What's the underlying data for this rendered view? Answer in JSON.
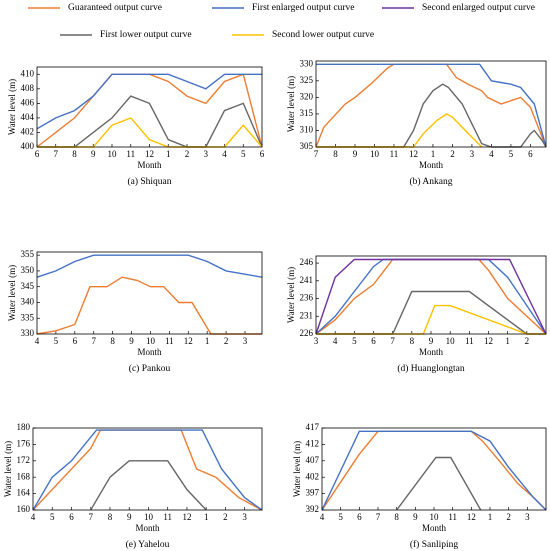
{
  "legend": {
    "entries": [
      {
        "name": "Guaranteed output curve",
        "color": "#ed7d31"
      },
      {
        "name": "First enlarged output curve",
        "color": "#4472c4"
      },
      {
        "name": "Second enlarged output curve",
        "color": "#7030a0"
      },
      {
        "name": "First lower output curve",
        "color": "#666666"
      },
      {
        "name": "Second lower output curve",
        "color": "#ffc000"
      }
    ]
  },
  "chart_data": [
    {
      "type": "line",
      "caption": "(a) Shiquan",
      "xlabel": "Month",
      "ylabel": "Water level (m)",
      "xlim": [
        0,
        12
      ],
      "ylim": [
        400,
        411
      ],
      "xticks": [
        {
          "value": 0,
          "label": "6"
        },
        {
          "value": 1,
          "label": "7"
        },
        {
          "value": 2,
          "label": "8"
        },
        {
          "value": 3,
          "label": "9"
        },
        {
          "value": 4,
          "label": "10"
        },
        {
          "value": 5,
          "label": "11"
        },
        {
          "value": 6,
          "label": "12"
        },
        {
          "value": 7,
          "label": "1"
        },
        {
          "value": 8,
          "label": "2"
        },
        {
          "value": 9,
          "label": "3"
        },
        {
          "value": 10,
          "label": "4"
        },
        {
          "value": 11,
          "label": "5"
        },
        {
          "value": 12,
          "label": "6"
        }
      ],
      "yticks": [
        400,
        402,
        404,
        406,
        408,
        410
      ],
      "series": [
        {
          "color": "#ed7d31",
          "x": [
            0,
            2,
            3,
            4,
            6,
            7,
            8,
            9,
            10,
            11,
            12
          ],
          "values": [
            400,
            404,
            407,
            410,
            410,
            409,
            407,
            406,
            409,
            410,
            400
          ]
        },
        {
          "color": "#4472c4",
          "x": [
            0,
            1,
            2,
            3,
            4,
            7,
            8,
            9,
            10,
            12
          ],
          "values": [
            402.5,
            404,
            405,
            407,
            410,
            410,
            409,
            408,
            410,
            410
          ]
        },
        {
          "color": "#666666",
          "x": [
            0,
            2,
            4,
            5,
            6,
            7,
            8,
            9,
            10,
            11,
            12
          ],
          "values": [
            400,
            400,
            404,
            407,
            406,
            401,
            400,
            400,
            405,
            406,
            400
          ]
        },
        {
          "color": "#ffc000",
          "x": [
            0,
            3,
            4,
            5,
            6,
            7,
            10,
            11,
            12
          ],
          "values": [
            400,
            400,
            403,
            404,
            401,
            400,
            400,
            403,
            400
          ]
        }
      ]
    },
    {
      "type": "line",
      "caption": "(b) Ankang",
      "xlabel": "Month",
      "ylabel": "Water level (m)",
      "xlim": [
        0,
        11.8
      ],
      "ylim": [
        305,
        331
      ],
      "xticks": [
        {
          "value": 0,
          "label": "7"
        },
        {
          "value": 1,
          "label": "8"
        },
        {
          "value": 2,
          "label": "9"
        },
        {
          "value": 3,
          "label": "10"
        },
        {
          "value": 4,
          "label": "11"
        },
        {
          "value": 5,
          "label": "12"
        },
        {
          "value": 6,
          "label": "1"
        },
        {
          "value": 7,
          "label": "2"
        },
        {
          "value": 8,
          "label": "3"
        },
        {
          "value": 9,
          "label": "4"
        },
        {
          "value": 10,
          "label": "5"
        },
        {
          "value": 11,
          "label": "6"
        }
      ],
      "yticks": [
        305,
        310,
        315,
        320,
        325,
        330
      ],
      "series": [
        {
          "color": "#ed7d31",
          "x": [
            0,
            0.4,
            1.5,
            2,
            2.8,
            3.7,
            4,
            6.7,
            7.2,
            7.8,
            8.5,
            8.8,
            9.5,
            10,
            10.5,
            11,
            11.8
          ],
          "values": [
            305,
            311,
            318,
            320,
            324,
            329,
            330,
            330,
            326,
            324,
            322,
            320,
            318,
            319,
            320,
            317,
            305
          ]
        },
        {
          "color": "#4472c4",
          "x": [
            0,
            8.4,
            9,
            10,
            10.5,
            11.2,
            11.8
          ],
          "values": [
            330,
            330,
            325,
            324,
            323,
            318,
            305
          ]
        },
        {
          "color": "#666666",
          "x": [
            0,
            4.5,
            5,
            5.5,
            6,
            6.5,
            6.8,
            7.5,
            8,
            8.5,
            9,
            10.5,
            11,
            11.2,
            11.6,
            11.8
          ],
          "values": [
            305,
            305,
            310,
            318,
            322,
            324,
            323,
            318,
            312,
            306,
            305,
            305,
            309,
            310,
            307,
            305
          ]
        },
        {
          "color": "#ffc000",
          "x": [
            0,
            5,
            5.5,
            6.2,
            6.7,
            7,
            7.5,
            8,
            8.5
          ],
          "values": [
            305,
            305,
            309,
            313,
            315,
            314,
            311,
            308,
            305
          ]
        }
      ]
    },
    {
      "type": "line",
      "caption": "(c) Pankou",
      "xlabel": "Month",
      "ylabel": "Water level (m)",
      "xlim": [
        0,
        11.9
      ],
      "ylim": [
        330,
        356
      ],
      "xticks": [
        {
          "value": 0,
          "label": "4"
        },
        {
          "value": 1,
          "label": "5"
        },
        {
          "value": 2,
          "label": "6"
        },
        {
          "value": 3,
          "label": "7"
        },
        {
          "value": 4,
          "label": "8"
        },
        {
          "value": 5,
          "label": "9"
        },
        {
          "value": 6,
          "label": "10"
        },
        {
          "value": 7,
          "label": "11"
        },
        {
          "value": 8,
          "label": "12"
        },
        {
          "value": 9,
          "label": "1"
        },
        {
          "value": 10,
          "label": "2"
        },
        {
          "value": 11,
          "label": "3"
        }
      ],
      "yticks": [
        330,
        335,
        340,
        345,
        350,
        355
      ],
      "series": [
        {
          "color": "#ed7d31",
          "x": [
            0,
            1,
            2,
            2.8,
            3.7,
            4.5,
            5.3,
            6,
            6.7,
            7.5,
            8.2,
            9.2,
            11.9
          ],
          "values": [
            330,
            331,
            333,
            345,
            345,
            348,
            347,
            345,
            345,
            340,
            340,
            330,
            330
          ]
        },
        {
          "color": "#4472c4",
          "x": [
            0,
            1,
            2,
            3,
            8,
            9,
            10,
            11.9
          ],
          "values": [
            348,
            350,
            353,
            355,
            355,
            353,
            350,
            348
          ]
        }
      ]
    },
    {
      "type": "line",
      "caption": "(d) Huanglongtan",
      "xlabel": "Month",
      "ylabel": "Water level (m)",
      "xlim": [
        0,
        12
      ],
      "ylim": [
        226,
        248
      ],
      "xticks": [
        {
          "value": 0,
          "label": "3"
        },
        {
          "value": 1,
          "label": "4"
        },
        {
          "value": 2,
          "label": "5"
        },
        {
          "value": 3,
          "label": "6"
        },
        {
          "value": 4,
          "label": "7"
        },
        {
          "value": 5,
          "label": "8"
        },
        {
          "value": 6,
          "label": "9"
        },
        {
          "value": 7,
          "label": "10"
        },
        {
          "value": 8,
          "label": "11"
        },
        {
          "value": 9,
          "label": "12"
        },
        {
          "value": 10,
          "label": "1"
        },
        {
          "value": 11,
          "label": "2"
        }
      ],
      "yticks": [
        226,
        231,
        236,
        241,
        246
      ],
      "series": [
        {
          "color": "#ed7d31",
          "x": [
            0,
            1,
            2,
            3,
            4,
            8.5,
            9,
            10,
            12
          ],
          "values": [
            226,
            230,
            236,
            240,
            247,
            247,
            244,
            236,
            226
          ]
        },
        {
          "color": "#4472c4",
          "x": [
            0,
            1,
            2,
            3,
            3.5,
            9,
            10,
            12
          ],
          "values": [
            226,
            231,
            238,
            245,
            247,
            247,
            242,
            226
          ]
        },
        {
          "color": "#7030a0",
          "x": [
            0,
            1,
            2,
            10.1,
            12
          ],
          "values": [
            226,
            242,
            247,
            247,
            226
          ]
        },
        {
          "color": "#666666",
          "x": [
            0,
            4,
            5,
            8,
            11,
            12
          ],
          "values": [
            226,
            226,
            238,
            238,
            226,
            226
          ]
        },
        {
          "color": "#ffc000",
          "x": [
            0,
            5.6,
            6.2,
            7,
            11,
            12
          ],
          "values": [
            226,
            226,
            234,
            234,
            226,
            226
          ]
        }
      ]
    },
    {
      "type": "line",
      "caption": "(e) Yahelou",
      "xlabel": "Month",
      "ylabel": "Water level (m)",
      "xlim": [
        0,
        11.9
      ],
      "ylim": [
        160,
        180
      ],
      "xticks": [
        {
          "value": 0,
          "label": "4"
        },
        {
          "value": 1,
          "label": "5"
        },
        {
          "value": 2,
          "label": "6"
        },
        {
          "value": 3,
          "label": "7"
        },
        {
          "value": 4,
          "label": "8"
        },
        {
          "value": 5,
          "label": "9"
        },
        {
          "value": 6,
          "label": "10"
        },
        {
          "value": 7,
          "label": "11"
        },
        {
          "value": 8,
          "label": "12"
        },
        {
          "value": 9,
          "label": "1"
        },
        {
          "value": 10,
          "label": "2"
        },
        {
          "value": 11,
          "label": "3"
        }
      ],
      "yticks": [
        160,
        164,
        168,
        172,
        176,
        180
      ],
      "series": [
        {
          "color": "#ed7d31",
          "x": [
            0,
            3,
            3.5,
            7.7,
            8.5,
            9.5,
            10.7,
            11.9
          ],
          "values": [
            160,
            175,
            179.5,
            179.5,
            170,
            168,
            163,
            160
          ]
        },
        {
          "color": "#4472c4",
          "x": [
            0,
            1,
            2,
            3.3,
            8.8,
            9.8,
            11,
            11.9
          ],
          "values": [
            160,
            168,
            172,
            179.5,
            179.5,
            170,
            163,
            160
          ]
        },
        {
          "color": "#666666",
          "x": [
            3,
            4,
            5,
            7,
            8,
            9
          ],
          "values": [
            160,
            168,
            172,
            172,
            165,
            160
          ]
        }
      ]
    },
    {
      "type": "line",
      "caption": "(f) Sanliping",
      "xlabel": "Month",
      "ylabel": "Water level (m)",
      "xlim": [
        0,
        12
      ],
      "ylim": [
        392,
        417
      ],
      "xticks": [
        {
          "value": 0,
          "label": "4"
        },
        {
          "value": 1,
          "label": "5"
        },
        {
          "value": 2,
          "label": "6"
        },
        {
          "value": 3,
          "label": "7"
        },
        {
          "value": 4,
          "label": "8"
        },
        {
          "value": 5,
          "label": "9"
        },
        {
          "value": 6,
          "label": "10"
        },
        {
          "value": 7,
          "label": "11"
        },
        {
          "value": 8,
          "label": "12"
        },
        {
          "value": 9,
          "label": "1"
        },
        {
          "value": 10,
          "label": "2"
        },
        {
          "value": 11,
          "label": "3"
        }
      ],
      "yticks": [
        392,
        397,
        402,
        407,
        412,
        417
      ],
      "series": [
        {
          "color": "#ed7d31",
          "x": [
            0,
            2,
            3,
            8,
            8.6,
            9.5,
            10.5,
            11.3,
            12
          ],
          "values": [
            392,
            409,
            416,
            416,
            413,
            407,
            400,
            396,
            392
          ]
        },
        {
          "color": "#4472c4",
          "x": [
            0,
            1.5,
            2,
            8,
            9,
            10,
            11.3,
            12
          ],
          "values": [
            392,
            410,
            416,
            416,
            413,
            405,
            396,
            392
          ]
        },
        {
          "color": "#666666",
          "x": [
            4,
            6.1,
            6.9,
            8.5
          ],
          "values": [
            392,
            408,
            408,
            392
          ]
        }
      ]
    }
  ]
}
